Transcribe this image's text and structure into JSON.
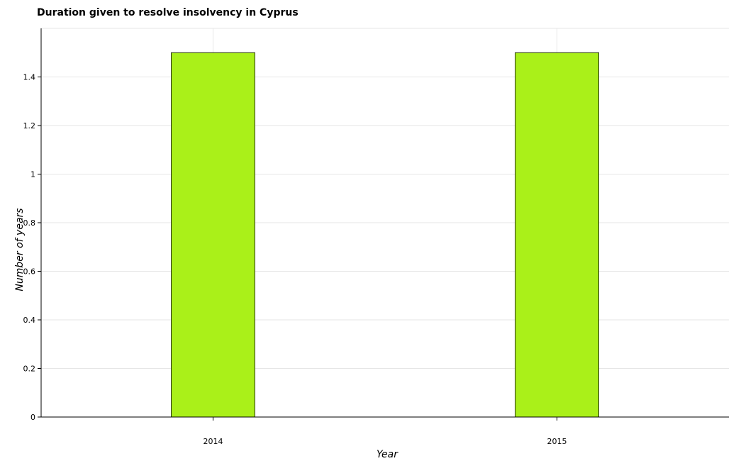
{
  "chart_data": {
    "type": "bar",
    "title": "Duration given to resolve insolvency in Cyprus",
    "xlabel": "Year",
    "ylabel": "Number of years",
    "categories": [
      "2014",
      "2015"
    ],
    "values": [
      1.5,
      1.5
    ],
    "ylim": [
      0,
      1.6
    ],
    "yticks": [
      "0",
      "0.2",
      "0.4",
      "0.6",
      "0.8",
      "1",
      "1.2",
      "1.4"
    ],
    "grid": true,
    "bar_color": "#aaf019"
  }
}
